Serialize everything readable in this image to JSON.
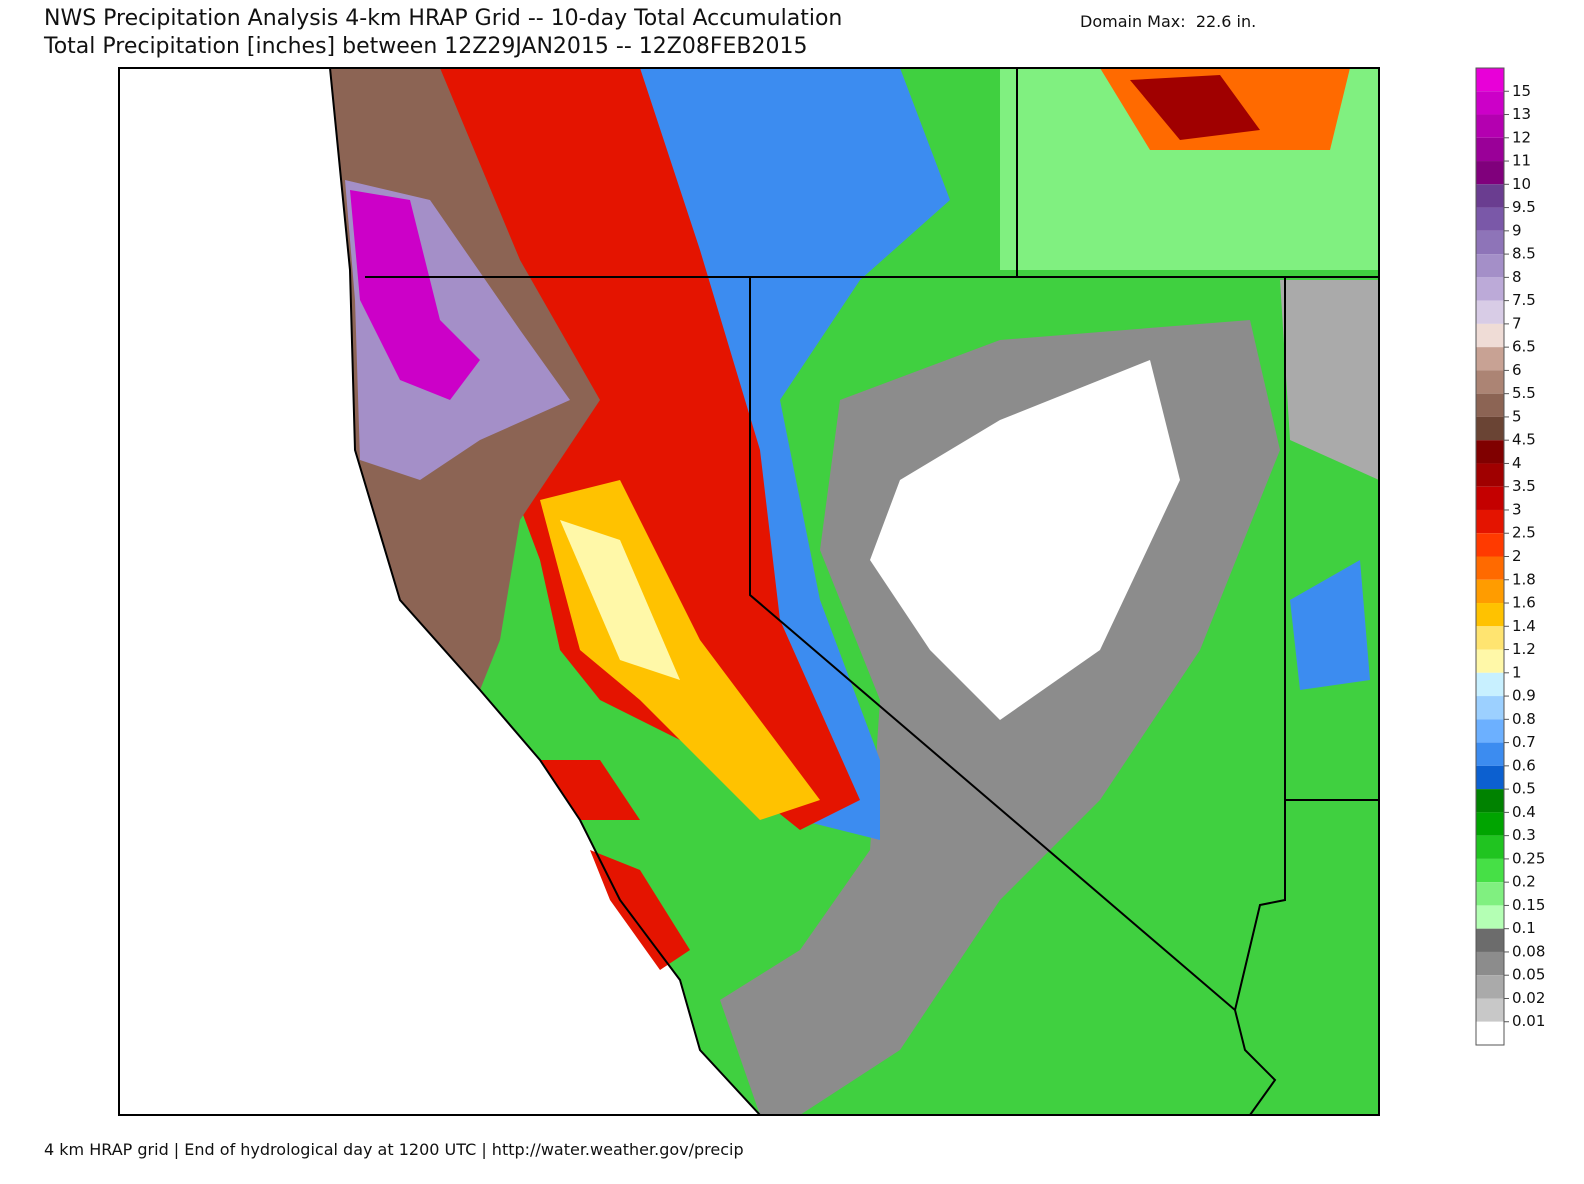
{
  "header": {
    "title": "NWS Precipitation Analysis 4-km HRAP Grid -- 10-day Total Accumulation",
    "subtitle": "Total Precipitation [inches] between 12Z29JAN2015 -- 12Z08FEB2015",
    "domain_max": "Domain Max:  22.6 in."
  },
  "legend": {
    "labels": [
      "15",
      "13",
      "12",
      "11",
      "10",
      "9.5",
      "9",
      "8.5",
      "8",
      "7.5",
      "7",
      "6.5",
      "6",
      "5.5",
      "5",
      "4.5",
      "4",
      "3.5",
      "3",
      "2.5",
      "2",
      "1.8",
      "1.6",
      "1.4",
      "1.2",
      "1",
      "0.9",
      "0.8",
      "0.7",
      "0.6",
      "0.5",
      "0.4",
      "0.3",
      "0.25",
      "0.2",
      "0.15",
      "0.1",
      "0.08",
      "0.05",
      "0.02",
      "0.01"
    ],
    "colors": [
      "#e800d8",
      "#cc00c8",
      "#b400b0",
      "#9a0098",
      "#80007c",
      "#6a3d90",
      "#7a58a8",
      "#8e74b8",
      "#a48fc8",
      "#bcaad8",
      "#d8cce6",
      "#efdcd6",
      "#c8a294",
      "#ac8474",
      "#8c6454",
      "#6a4434",
      "#800000",
      "#a00000",
      "#c40000",
      "#e41400",
      "#ff3a00",
      "#ff6a00",
      "#ff9c00",
      "#ffc200",
      "#ffe470",
      "#fff8a8",
      "#c8f0ff",
      "#9cd0ff",
      "#6cb0ff",
      "#3c8cf0",
      "#0c60d0",
      "#008200",
      "#00a400",
      "#20c420",
      "#46e046",
      "#80f080",
      "#b4ffb4",
      "#6c6c6c",
      "#8c8c8c",
      "#aaaaaa",
      "#c8c8c8",
      "#ffffff"
    ]
  },
  "footer": "4 km HRAP grid | End of hydrological day at 1200 UTC | http://water.weather.gov/precip"
}
